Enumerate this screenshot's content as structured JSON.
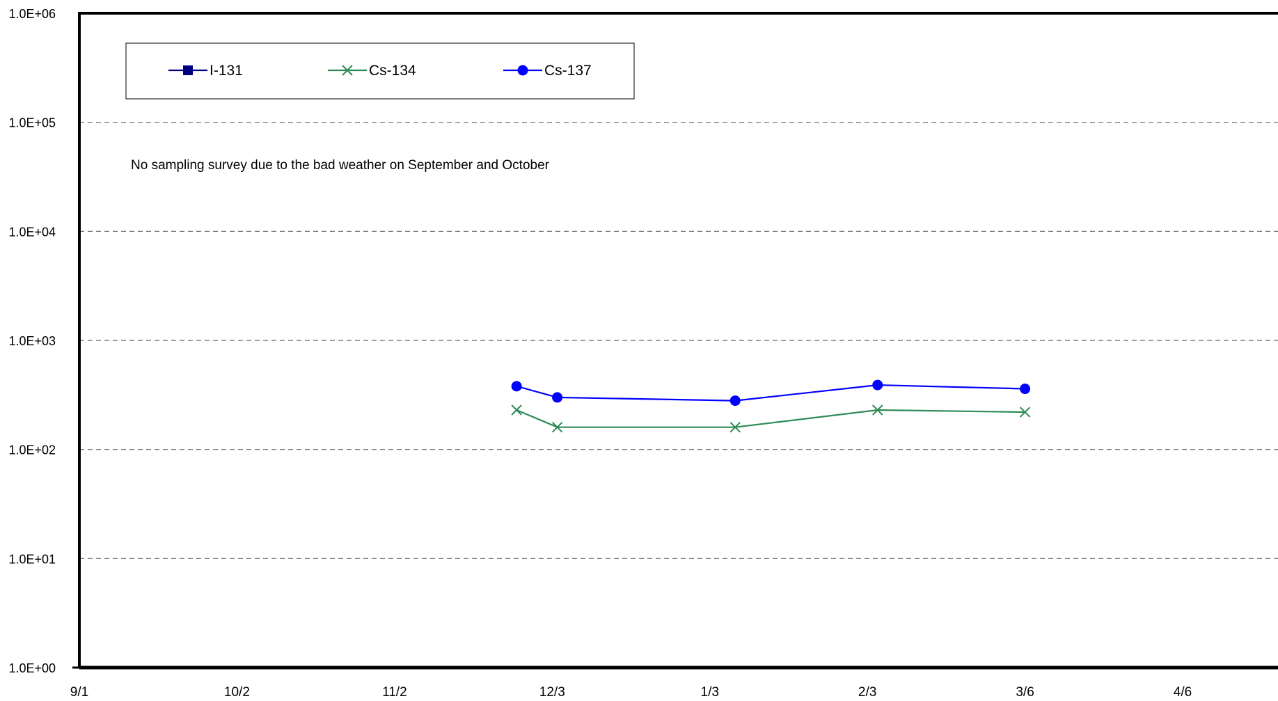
{
  "chart_data": {
    "type": "line",
    "title": "",
    "xlabel": "",
    "ylabel": "",
    "y_scale": "log",
    "ylim": [
      1,
      1000000
    ],
    "y_ticks": [
      {
        "value": 1,
        "label": "1.0E+00"
      },
      {
        "value": 10,
        "label": "1.0E+01"
      },
      {
        "value": 100,
        "label": "1.0E+02"
      },
      {
        "value": 1000,
        "label": "1.0E+03"
      },
      {
        "value": 10000,
        "label": "1.0E+04"
      },
      {
        "value": 100000,
        "label": "1.0E+05"
      },
      {
        "value": 1000000,
        "label": "1.0E+06"
      }
    ],
    "xlim": [
      "9/1",
      "4/6"
    ],
    "x_ticks": [
      "9/1",
      "10/2",
      "11/2",
      "12/3",
      "1/3",
      "2/3",
      "3/6",
      "4/6"
    ],
    "grid": true,
    "legend_position": "top-left",
    "annotation": "No sampling survey due to the bad weather on September and October",
    "series": [
      {
        "name": "I-131",
        "color": "#000080",
        "marker": "square",
        "points": []
      },
      {
        "name": "Cs-134",
        "color": "#2e8b57",
        "marker": "x",
        "points": [
          {
            "x": "11/26",
            "y": 230
          },
          {
            "x": "12/4",
            "y": 160
          },
          {
            "x": "1/8",
            "y": 160
          },
          {
            "x": "2/5",
            "y": 230
          },
          {
            "x": "3/6",
            "y": 220
          }
        ]
      },
      {
        "name": "Cs-137",
        "color": "#0000ff",
        "marker": "circle",
        "points": [
          {
            "x": "11/26",
            "y": 380
          },
          {
            "x": "12/4",
            "y": 300
          },
          {
            "x": "1/8",
            "y": 280
          },
          {
            "x": "2/5",
            "y": 390
          },
          {
            "x": "3/6",
            "y": 360
          }
        ]
      }
    ]
  }
}
